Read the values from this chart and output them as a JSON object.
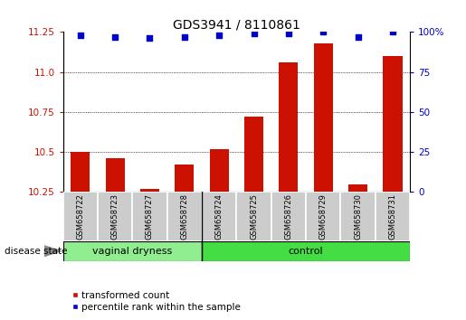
{
  "title": "GDS3941 / 8110861",
  "samples": [
    "GSM658722",
    "GSM658723",
    "GSM658727",
    "GSM658728",
    "GSM658724",
    "GSM658725",
    "GSM658726",
    "GSM658729",
    "GSM658730",
    "GSM658731"
  ],
  "red_values": [
    10.5,
    10.46,
    10.27,
    10.42,
    10.52,
    10.72,
    11.06,
    11.18,
    10.3,
    11.1
  ],
  "blue_values": [
    98,
    97,
    96,
    97,
    98,
    99,
    99,
    100,
    97,
    100
  ],
  "ylim_left": [
    10.25,
    11.25
  ],
  "ylim_right": [
    0,
    100
  ],
  "yticks_left": [
    10.25,
    10.5,
    10.75,
    11.0,
    11.25
  ],
  "yticks_right": [
    0,
    25,
    50,
    75,
    100
  ],
  "grid_ticks": [
    10.5,
    10.75,
    11.0
  ],
  "groups": [
    {
      "label": "vaginal dryness",
      "n": 4,
      "color": "#90ee90"
    },
    {
      "label": "control",
      "n": 6,
      "color": "#44dd44"
    }
  ],
  "group_separator": 4,
  "bar_color": "#cc1100",
  "blue_color": "#0000cc",
  "label_box_color": "#cccccc",
  "tick_label_color_left": "#cc1100",
  "tick_label_color_right": "#0000cc",
  "disease_state_label": "disease state",
  "legend_red": "transformed count",
  "legend_blue": "percentile rank within the sample",
  "title_fontsize": 10,
  "tick_fontsize": 7.5,
  "sample_fontsize": 6,
  "group_fontsize": 8,
  "legend_fontsize": 7.5
}
